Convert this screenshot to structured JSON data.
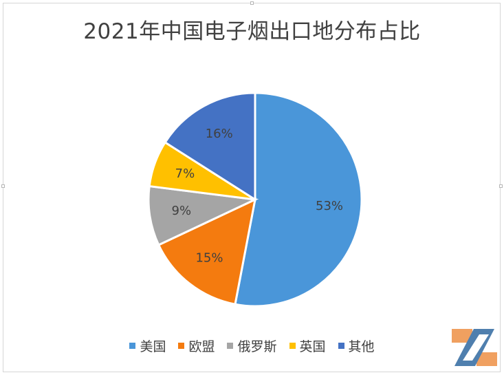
{
  "chart_data": {
    "type": "pie",
    "title": "2021年中国电子烟出口地分布占比",
    "categories": [
      "美国",
      "欧盟",
      "俄罗斯",
      "英国",
      "其他"
    ],
    "values": [
      53,
      15,
      9,
      7,
      16
    ],
    "labels": [
      "53%",
      "15%",
      "9%",
      "7%",
      "16%"
    ],
    "colors": [
      "#4a96d9",
      "#f47b0f",
      "#a5a5a5",
      "#ffc000",
      "#4472c4"
    ],
    "legend_position": "bottom",
    "start_angle": "12 o'clock, clockwise"
  }
}
